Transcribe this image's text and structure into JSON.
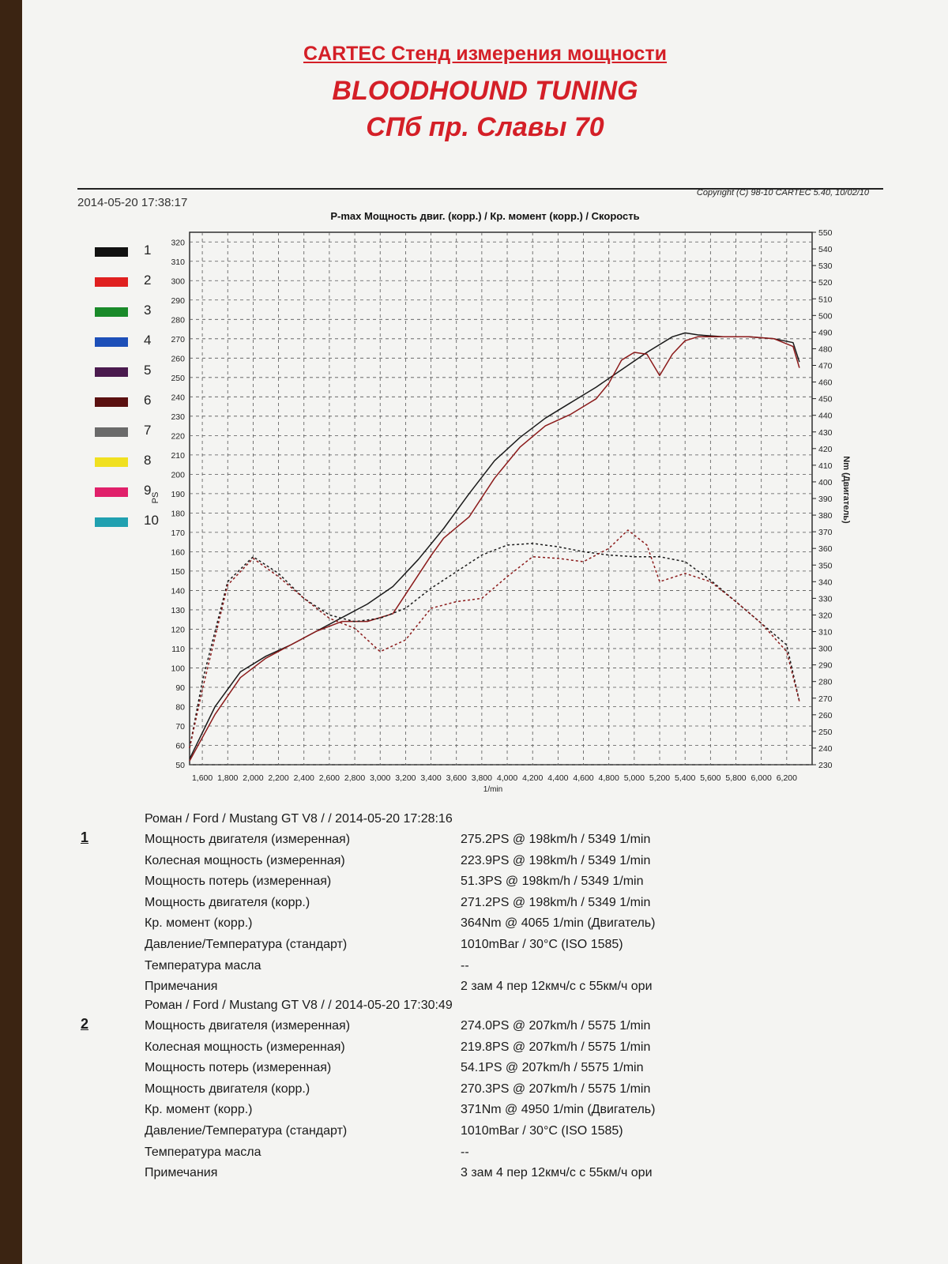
{
  "header": {
    "line1": "CARTEC Стенд измерения мощности",
    "line2": "BLOODHOUND TUNING",
    "line3": "СПб пр. Славы 70"
  },
  "meta": {
    "date": "2014-05-20 17:38:17",
    "copyright": "Copyright (C) 98-10 CARTEC 5.40, 10/02/10"
  },
  "legend": [
    {
      "label": "1",
      "color": "#111111"
    },
    {
      "label": "2",
      "color": "#e02020"
    },
    {
      "label": "3",
      "color": "#1a8a2a"
    },
    {
      "label": "4",
      "color": "#1d4fb8"
    },
    {
      "label": "5",
      "color": "#4a1a4e"
    },
    {
      "label": "6",
      "color": "#5a1010"
    },
    {
      "label": "7",
      "color": "#6a6a6a"
    },
    {
      "label": "8",
      "color": "#f0e020"
    },
    {
      "label": "9",
      "color": "#e0206a"
    },
    {
      "label": "10",
      "color": "#20a0b0"
    }
  ],
  "chart_data": {
    "type": "line",
    "title": "P-max Мощность двиг. (корр.) / Кр. момент (корр.) / Скорость",
    "xlabel": "1/min",
    "ylabel_left": "PS",
    "ylabel_right": "Nm (Двигатель)",
    "xlim": [
      1500,
      6400
    ],
    "ylim_left": [
      50,
      325
    ],
    "ylim_right": [
      230,
      550
    ],
    "x_ticks": [
      1600,
      1800,
      2000,
      2200,
      2400,
      2600,
      2800,
      3000,
      3200,
      3400,
      3600,
      3800,
      4000,
      4200,
      4400,
      4600,
      4800,
      5000,
      5200,
      5400,
      5600,
      5800,
      6000,
      6200
    ],
    "x_tick_labels": [
      "1,600",
      "1,800",
      "2,000",
      "2,200",
      "2,400",
      "2,600",
      "2,800",
      "3,000",
      "3,200",
      "3,400",
      "3,600",
      "3,800",
      "4,000",
      "4,200",
      "4,400",
      "4,600",
      "4,800",
      "5,000",
      "5,200",
      "5,400",
      "5,600",
      "5,800",
      "6,000",
      "6,200"
    ],
    "y_left_ticks": [
      50,
      60,
      70,
      80,
      90,
      100,
      110,
      120,
      130,
      140,
      150,
      160,
      170,
      180,
      190,
      200,
      210,
      220,
      230,
      240,
      250,
      260,
      270,
      280,
      290,
      300,
      310,
      320
    ],
    "y_right_ticks": [
      230,
      240,
      250,
      260,
      270,
      280,
      290,
      300,
      310,
      320,
      330,
      340,
      350,
      360,
      370,
      380,
      390,
      400,
      410,
      420,
      430,
      440,
      450,
      460,
      470,
      480,
      490,
      500,
      510,
      520,
      530,
      540,
      550
    ],
    "grid": true,
    "series": [
      {
        "name": "1",
        "kind": "power",
        "axis": "left",
        "style": "solid",
        "color": "#1a1a1a",
        "x": [
          1500,
          1700,
          1900,
          2100,
          2300,
          2500,
          2700,
          2900,
          3100,
          3300,
          3500,
          3700,
          3900,
          4100,
          4300,
          4500,
          4700,
          4900,
          5100,
          5300,
          5400,
          5500,
          5700,
          5900,
          6100,
          6250,
          6300
        ],
        "y": [
          53,
          80,
          98,
          106,
          112,
          119,
          126,
          133,
          142,
          156,
          172,
          190,
          207,
          219,
          229,
          237,
          245,
          254,
          263,
          271,
          273,
          272,
          271,
          271,
          270,
          268,
          258
        ]
      },
      {
        "name": "2",
        "kind": "power",
        "axis": "left",
        "style": "solid",
        "color": "#8b1a1a",
        "x": [
          1500,
          1700,
          1900,
          2100,
          2300,
          2500,
          2700,
          2900,
          3100,
          3300,
          3400,
          3500,
          3700,
          3900,
          4100,
          4300,
          4500,
          4700,
          4800,
          4900,
          5000,
          5100,
          5200,
          5300,
          5400,
          5500,
          5700,
          5900,
          6100,
          6250,
          6300
        ],
        "y": [
          52,
          76,
          95,
          105,
          112,
          119,
          124,
          124,
          128,
          148,
          158,
          167,
          178,
          198,
          214,
          225,
          231,
          239,
          247,
          259,
          263,
          262,
          251,
          262,
          269,
          271,
          271,
          271,
          270,
          266,
          255
        ]
      },
      {
        "name": "1",
        "kind": "torque",
        "axis": "right",
        "style": "dashed",
        "color": "#1a1a1a",
        "x": [
          1500,
          1600,
          1800,
          2000,
          2200,
          2400,
          2600,
          2800,
          3000,
          3200,
          3400,
          3600,
          3800,
          4000,
          4200,
          4400,
          4600,
          4800,
          5000,
          5200,
          5400,
          5600,
          5800,
          6000,
          6200,
          6300
        ],
        "y": [
          240,
          280,
          340,
          355,
          345,
          330,
          320,
          316,
          318,
          324,
          336,
          346,
          356,
          362,
          363,
          361,
          358,
          356,
          355,
          355,
          352,
          341,
          328,
          315,
          302,
          268
        ]
      },
      {
        "name": "2",
        "kind": "torque",
        "axis": "right",
        "style": "dashed",
        "color": "#8b1a1a",
        "x": [
          1500,
          1600,
          1800,
          2000,
          2200,
          2400,
          2600,
          2800,
          3000,
          3200,
          3400,
          3600,
          3800,
          4000,
          4200,
          4400,
          4600,
          4800,
          4950,
          5100,
          5200,
          5400,
          5600,
          5800,
          6000,
          6200,
          6300
        ],
        "y": [
          240,
          275,
          338,
          354,
          343,
          330,
          318,
          312,
          298,
          305,
          324,
          328,
          330,
          343,
          355,
          354,
          352,
          360,
          371,
          362,
          340,
          345,
          340,
          328,
          315,
          298,
          268
        ]
      }
    ]
  },
  "runs": [
    {
      "num": "1",
      "head": "Роман / Ford / Mustang GT V8 /  / 2014-05-20 17:28:16",
      "rows": [
        {
          "k": "Мощность двигателя (измеренная)",
          "v": "275.2PS @ 198km/h / 5349 1/min"
        },
        {
          "k": "Колесная мощность (измеренная)",
          "v": "223.9PS @ 198km/h / 5349 1/min"
        },
        {
          "k": "Мощность потерь (измеренная)",
          "v": "51.3PS @ 198km/h / 5349 1/min"
        },
        {
          "k": "Мощность двигателя (корр.)",
          "v": "271.2PS @ 198km/h / 5349 1/min"
        },
        {
          "k": "Кр. момент (корр.)",
          "v": "364Nm @ 4065 1/min (Двигатель)"
        },
        {
          "k": "Давление/Температура (стандарт)",
          "v": "1010mBar / 30°C    (ISO 1585)"
        },
        {
          "k": "Температура масла",
          "v": "--"
        },
        {
          "k": "Примечания",
          "v": "2 зам 4 пер 12кмч/с с 55км/ч ори"
        }
      ]
    },
    {
      "num": "2",
      "head": "Роман / Ford / Mustang GT V8 /  / 2014-05-20 17:30:49",
      "rows": [
        {
          "k": "Мощность двигателя (измеренная)",
          "v": "274.0PS @ 207km/h / 5575 1/min"
        },
        {
          "k": "Колесная мощность (измеренная)",
          "v": "219.8PS @ 207km/h / 5575 1/min"
        },
        {
          "k": "Мощность потерь (измеренная)",
          "v": "54.1PS @ 207km/h / 5575 1/min"
        },
        {
          "k": "Мощность двигателя (корр.)",
          "v": "270.3PS @ 207km/h / 5575 1/min"
        },
        {
          "k": "Кр. момент (корр.)",
          "v": "371Nm @ 4950 1/min (Двигатель)"
        },
        {
          "k": "Давление/Температура (стандарт)",
          "v": "1010mBar / 30°C    (ISO 1585)"
        },
        {
          "k": "Температура масла",
          "v": "--"
        },
        {
          "k": "Примечания",
          "v": "3 зам 4 пер 12кмч/с с 55км/ч ори"
        }
      ]
    }
  ]
}
